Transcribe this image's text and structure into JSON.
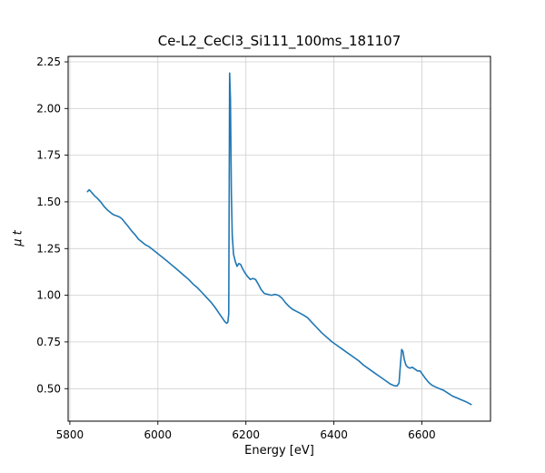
{
  "chart_data": {
    "type": "line",
    "title": "Ce-L2_CeCl3_Si111_100ms_181107",
    "xlabel": "Energy [eV]",
    "ylabel": "μ t",
    "xlim": [
      5796,
      6756
    ],
    "ylim": [
      0.326,
      2.279
    ],
    "xticks": [
      5800,
      6000,
      6200,
      6400,
      6600
    ],
    "xtick_labels": [
      "5800",
      "6000",
      "6200",
      "6400",
      "6600"
    ],
    "yticks": [
      0.5,
      0.75,
      1.0,
      1.25,
      1.5,
      1.75,
      2.0,
      2.25
    ],
    "ytick_labels": [
      "0.50",
      "0.75",
      "1.00",
      "1.25",
      "1.50",
      "1.75",
      "2.00",
      "2.25"
    ],
    "grid": true,
    "legend": false,
    "line_color": "#1f77b4",
    "grid_color": "#cfcfcf",
    "x": [
      5840,
      5844,
      5848,
      5855,
      5862,
      5870,
      5878,
      5886,
      5894,
      5900,
      5906,
      5912,
      5918,
      5925,
      5932,
      5940,
      5948,
      5956,
      5964,
      5972,
      5980,
      5988,
      5996,
      6004,
      6012,
      6020,
      6030,
      6040,
      6050,
      6060,
      6070,
      6080,
      6090,
      6100,
      6110,
      6120,
      6130,
      6140,
      6146,
      6152,
      6156,
      6159,
      6161,
      6163,
      6165,
      6167,
      6169,
      6172,
      6176,
      6180,
      6184,
      6188,
      6193,
      6198,
      6204,
      6210,
      6216,
      6222,
      6228,
      6235,
      6242,
      6250,
      6258,
      6266,
      6274,
      6282,
      6290,
      6298,
      6306,
      6314,
      6322,
      6330,
      6340,
      6350,
      6360,
      6372,
      6384,
      6396,
      6408,
      6420,
      6432,
      6444,
      6456,
      6468,
      6480,
      6492,
      6504,
      6516,
      6528,
      6538,
      6544,
      6548,
      6551,
      6554,
      6557,
      6560,
      6564,
      6568,
      6573,
      6578,
      6584,
      6590,
      6596,
      6602,
      6608,
      6615,
      6622,
      6630,
      6640,
      6650,
      6660,
      6670,
      6680,
      6690,
      6700,
      6712
    ],
    "y": [
      1.555,
      1.565,
      1.555,
      1.535,
      1.52,
      1.5,
      1.475,
      1.455,
      1.44,
      1.43,
      1.425,
      1.42,
      1.41,
      1.39,
      1.37,
      1.345,
      1.325,
      1.3,
      1.285,
      1.27,
      1.26,
      1.245,
      1.23,
      1.215,
      1.2,
      1.185,
      1.165,
      1.145,
      1.125,
      1.105,
      1.085,
      1.06,
      1.04,
      1.015,
      0.99,
      0.965,
      0.935,
      0.9,
      0.88,
      0.86,
      0.85,
      0.855,
      0.9,
      2.19,
      2.05,
      1.55,
      1.32,
      1.22,
      1.18,
      1.155,
      1.17,
      1.165,
      1.14,
      1.12,
      1.1,
      1.085,
      1.09,
      1.085,
      1.06,
      1.03,
      1.01,
      1.005,
      1.0,
      1.005,
      1.0,
      0.985,
      0.96,
      0.94,
      0.925,
      0.915,
      0.905,
      0.895,
      0.88,
      0.855,
      0.83,
      0.8,
      0.775,
      0.75,
      0.73,
      0.71,
      0.69,
      0.67,
      0.65,
      0.625,
      0.605,
      0.585,
      0.565,
      0.545,
      0.525,
      0.515,
      0.515,
      0.53,
      0.62,
      0.71,
      0.7,
      0.655,
      0.625,
      0.615,
      0.61,
      0.615,
      0.605,
      0.595,
      0.595,
      0.575,
      0.555,
      0.535,
      0.52,
      0.51,
      0.5,
      0.49,
      0.475,
      0.46,
      0.45,
      0.44,
      0.43,
      0.415
    ]
  }
}
